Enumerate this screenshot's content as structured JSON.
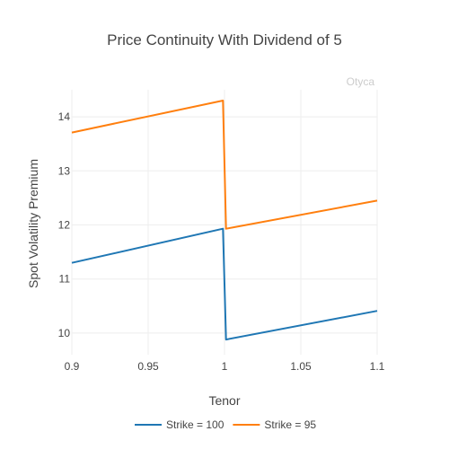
{
  "chart_data": {
    "type": "line",
    "title": "Price Continuity With Dividend of 5",
    "xlabel": "Tenor",
    "ylabel": "Spot Volatility Premium",
    "watermark": "Otyca",
    "xlim": [
      0.9,
      1.1
    ],
    "ylim": [
      9.6,
      14.5
    ],
    "x_ticks": [
      0.9,
      0.95,
      1,
      1.05,
      1.1
    ],
    "x_tick_labels": [
      "0.9",
      "0.95",
      "1",
      "1.05",
      "1.1"
    ],
    "y_ticks": [
      10,
      11,
      12,
      13,
      14
    ],
    "y_tick_labels": [
      "10",
      "11",
      "12",
      "13",
      "14"
    ],
    "grid": true,
    "legend_position": "bottom-center",
    "series": [
      {
        "name": "Strike = 100",
        "color": "#1f77b4",
        "points": [
          [
            0.9,
            11.3
          ],
          [
            0.999,
            11.93
          ],
          [
            1.001,
            9.88
          ],
          [
            1.1,
            10.41
          ]
        ]
      },
      {
        "name": "Strike = 95",
        "color": "#ff7f0e",
        "points": [
          [
            0.9,
            13.71
          ],
          [
            0.999,
            14.3
          ],
          [
            1.001,
            11.93
          ],
          [
            1.1,
            12.45
          ]
        ]
      }
    ]
  }
}
